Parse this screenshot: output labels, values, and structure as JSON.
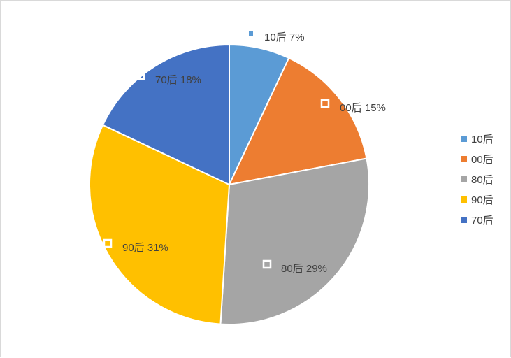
{
  "chart_data": {
    "type": "pie",
    "categories": [
      "10后",
      "00后",
      "80后",
      "90后",
      "70后"
    ],
    "values": [
      7,
      15,
      29,
      31,
      18
    ],
    "unit": "%",
    "colors": [
      "#5b9bd5",
      "#ed7d31",
      "#a5a5a5",
      "#ffc000",
      "#4472c4"
    ],
    "start_angle_deg": 0,
    "direction": "clockwise",
    "data_labels": [
      "10后 7%",
      "00后 15%",
      "80后 29%",
      "90后 31%",
      "70后 18%"
    ],
    "legend": {
      "position": "right",
      "entries": [
        "10后",
        "00后",
        "80后",
        "90后",
        "70后"
      ]
    }
  }
}
